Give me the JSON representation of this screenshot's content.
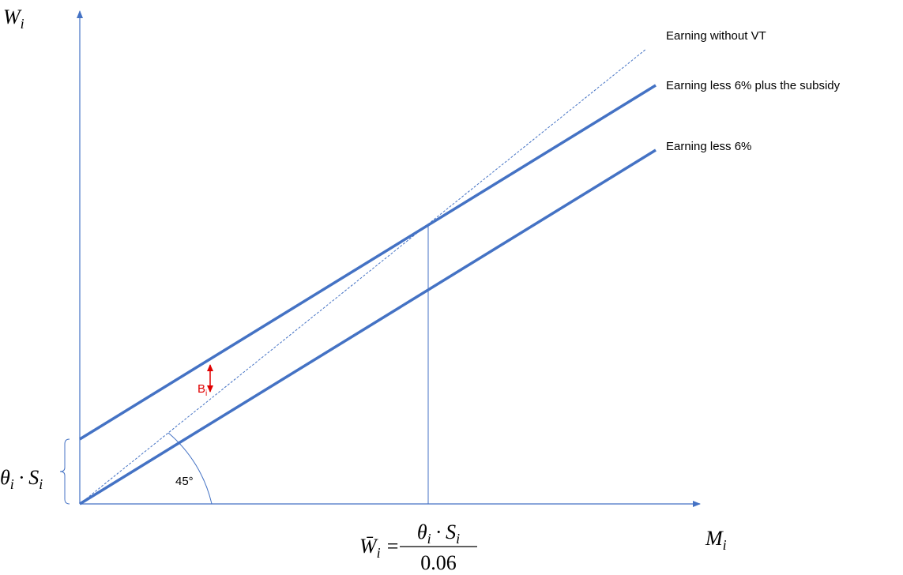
{
  "axes": {
    "y_label": {
      "symbol": "W",
      "subscript": "i"
    },
    "x_label": {
      "symbol": "M",
      "subscript": "i"
    }
  },
  "lines": [
    {
      "label": "Earning without VT"
    },
    {
      "label": "Earning less 6% plus the subsidy"
    },
    {
      "label": "Earning less 6%"
    }
  ],
  "annotations": {
    "gap": {
      "symbol": "B",
      "subscript": "i"
    },
    "angle": "45°",
    "intercept": {
      "theta": "θ",
      "theta_sub": "i",
      "dot": "·",
      "s": "S",
      "s_sub": "i"
    }
  },
  "threshold": {
    "lhs": "W̄",
    "lhs_sub": "i",
    "equals": "=",
    "numerator": {
      "theta": "θ",
      "theta_sub": "i",
      "dot": "·",
      "s": "S",
      "s_sub": "i"
    },
    "denominator": 0.06
  }
}
